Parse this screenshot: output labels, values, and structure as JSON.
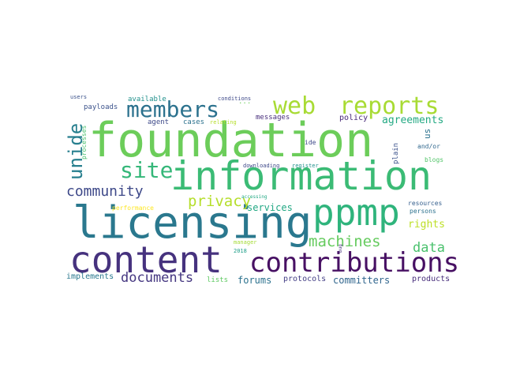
{
  "words": [
    {
      "text": "foundation",
      "color": "#6ccd5a"
    },
    {
      "text": "information",
      "color": "#3bbb75"
    },
    {
      "text": "licensing",
      "color": "#2a788e"
    },
    {
      "text": "content",
      "color": "#46327e"
    },
    {
      "text": "contributions",
      "color": "#471063"
    },
    {
      "text": "ppmp",
      "color": "#2fb47c"
    },
    {
      "text": "web",
      "color": "#a8db34"
    },
    {
      "text": "reports",
      "color": "#a8db34"
    },
    {
      "text": "members",
      "color": "#2c728e"
    },
    {
      "text": "site",
      "color": "#35b779"
    },
    {
      "text": "unide",
      "color": "#277f8e"
    },
    {
      "text": "community",
      "color": "#3e4989"
    },
    {
      "text": "privacy",
      "color": "#b5de2b"
    },
    {
      "text": "machines",
      "color": "#65cb5e"
    },
    {
      "text": "documents",
      "color": "#453781"
    },
    {
      "text": "data",
      "color": "#4ac16d"
    },
    {
      "text": "agreements",
      "color": "#23a983"
    },
    {
      "text": "rights",
      "color": "#bddf26"
    },
    {
      "text": "services",
      "color": "#22a884"
    },
    {
      "text": "forums",
      "color": "#2c728e"
    },
    {
      "text": "committers",
      "color": "#31668e"
    },
    {
      "text": "products",
      "color": "#472d7b"
    },
    {
      "text": "protocols",
      "color": "#433e85"
    },
    {
      "text": "lists",
      "color": "#5ec962"
    },
    {
      "text": "implements",
      "color": "#2a788e"
    },
    {
      "text": "messages",
      "color": "#472d7b"
    },
    {
      "text": "policy",
      "color": "#482878"
    },
    {
      "text": "available",
      "color": "#21918c"
    },
    {
      "text": "payloads",
      "color": "#3b528b"
    },
    {
      "text": "agent",
      "color": "#3e4a89"
    },
    {
      "text": "cases",
      "color": "#2c728e"
    },
    {
      "text": "relating",
      "color": "#b5de2b"
    },
    {
      "text": "conditions",
      "color": "#3e4989"
    },
    {
      "text": "users",
      "color": "#3b528b"
    },
    {
      "text": "processes",
      "color": "#4ac16d"
    },
    {
      "text": "downloading",
      "color": "#3e4989"
    },
    {
      "text": "register",
      "color": "#21918c"
    },
    {
      "text": "ide",
      "color": "#3e4989"
    },
    {
      "text": "plain",
      "color": "#3b528b"
    },
    {
      "text": "us",
      "color": "#2c728e"
    },
    {
      "text": "and/or",
      "color": "#31688e"
    },
    {
      "text": "blogs",
      "color": "#52c569"
    },
    {
      "text": "accessing",
      "color": "#22a884"
    },
    {
      "text": "performance",
      "color": "#fde725"
    },
    {
      "text": "resources",
      "color": "#355f8d"
    },
    {
      "text": "persons",
      "color": "#2c728e"
    },
    {
      "text": "manager",
      "color": "#a5db36"
    },
    {
      "text": "bug",
      "color": "#46327e"
    },
    {
      "text": "2018",
      "color": "#1f9e89"
    },
    {
      "text": "...",
      "color": "#6ccd5a"
    }
  ]
}
